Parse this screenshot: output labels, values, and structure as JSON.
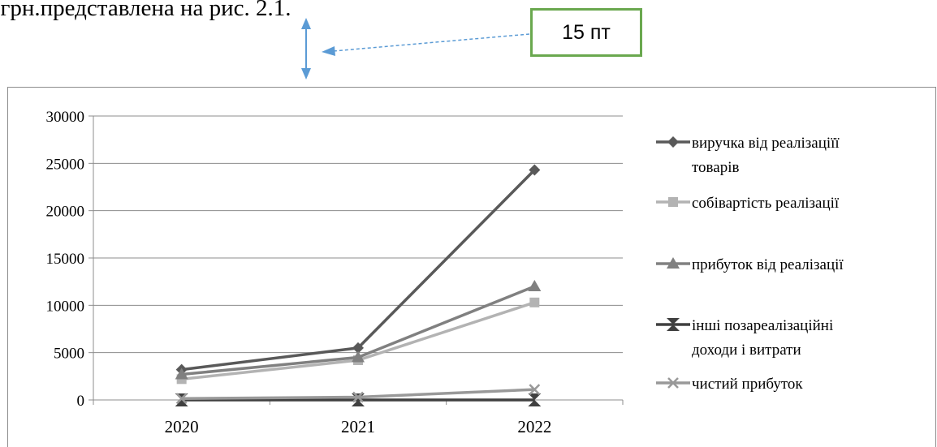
{
  "page": {
    "top_text": ". грн.представлена на рис. 2.1.",
    "callout_label": "15 пт",
    "accent_color": "#6aa84f",
    "arrow_color": "#5b9bd5"
  },
  "chart_data": {
    "type": "line",
    "categories": [
      "2020",
      "2021",
      "2022"
    ],
    "ylim": [
      0,
      30000
    ],
    "yticks": [
      0,
      5000,
      10000,
      15000,
      20000,
      25000,
      30000
    ],
    "grid": true,
    "legend_position": "right",
    "title": "",
    "xlabel": "",
    "ylabel": "",
    "series": [
      {
        "name": "виручка від реалізаціїї товарів",
        "legend_lines": [
          "виручка від реалізаціїї",
          "товарів"
        ],
        "values": [
          3200,
          5500,
          24300
        ],
        "color": "#595959",
        "marker": "diamond"
      },
      {
        "name": "собівартість реалізації",
        "legend_lines": [
          "собівартість реалізації"
        ],
        "values": [
          2200,
          4200,
          10300
        ],
        "color": "#b3b3b3",
        "marker": "square"
      },
      {
        "name": "прибуток від реалізації",
        "legend_lines": [
          "прибуток від реалізації"
        ],
        "values": [
          2700,
          4500,
          12000
        ],
        "color": "#808080",
        "marker": "triangle"
      },
      {
        "name": "інші позареалізаційні доходи і витрати",
        "legend_lines": [
          "інші позареалізаційні",
          "доходи і витрати"
        ],
        "values": [
          0,
          0,
          0
        ],
        "color": "#404040",
        "marker": "x-star"
      },
      {
        "name": "чистий прибуток",
        "legend_lines": [
          "чистий прибуток"
        ],
        "values": [
          150,
          300,
          1100
        ],
        "color": "#999999",
        "marker": "x"
      }
    ]
  }
}
